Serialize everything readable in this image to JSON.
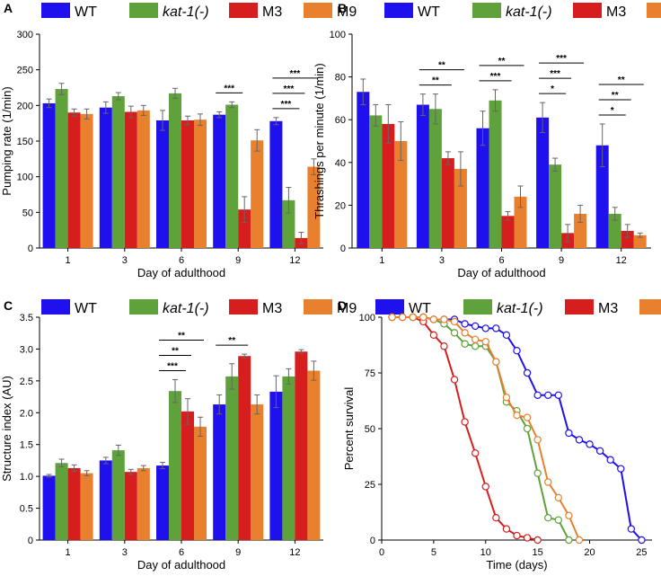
{
  "colors": {
    "WT": "#1f10ee",
    "kat1": "#5fa13a",
    "M3": "#d61e1f",
    "M9": "#e8802e",
    "axis": "#000000",
    "sig": "#333333"
  },
  "legend": [
    {
      "label": "WT",
      "italic": false,
      "colorKey": "WT"
    },
    {
      "label": "kat-1(-)",
      "italic": true,
      "colorKey": "kat1"
    },
    {
      "label": "M3",
      "italic": false,
      "colorKey": "M3"
    },
    {
      "label": "M9",
      "italic": false,
      "colorKey": "M9"
    }
  ],
  "chart_data": [
    {
      "panel": "A",
      "type": "bar",
      "ylabel": "Pumping rate (1/min)",
      "xlabel": "Day of adulthood",
      "categories": [
        "1",
        "3",
        "6",
        "9",
        "12"
      ],
      "ylim": [
        0,
        300
      ],
      "yticks": [
        "0",
        "50",
        "100",
        "150",
        "200",
        "250",
        "300"
      ],
      "series": [
        {
          "name": "WT",
          "values": [
            203,
            197,
            179,
            187,
            178
          ],
          "errors": [
            6,
            8,
            14,
            4,
            5
          ]
        },
        {
          "name": "kat-1(-)",
          "values": [
            223,
            213,
            217,
            201,
            67
          ],
          "errors": [
            8,
            5,
            7,
            4,
            18
          ]
        },
        {
          "name": "M3",
          "values": [
            190,
            191,
            179,
            54,
            14
          ],
          "errors": [
            5,
            8,
            6,
            18,
            8
          ]
        },
        {
          "name": "M9",
          "values": [
            188,
            193,
            180,
            151,
            114
          ],
          "errors": [
            7,
            7,
            8,
            15,
            11
          ]
        }
      ],
      "significance": [
        {
          "cat": 3,
          "from": 0,
          "to": 1,
          "label": "***"
        },
        {
          "cat": 4,
          "from": 0,
          "to": 3,
          "label": "***"
        },
        {
          "cat": 4,
          "from": 0,
          "to": 2,
          "label": "***"
        },
        {
          "cat": 4,
          "from": 0,
          "to": 1,
          "label": "***"
        }
      ]
    },
    {
      "panel": "B",
      "type": "bar",
      "ylabel": "Thrashings per minute (1/min)",
      "xlabel": "Day of adulthood",
      "categories": [
        "1",
        "3",
        "6",
        "9",
        "12"
      ],
      "ylim": [
        0,
        100
      ],
      "yticks": [
        "0",
        "20",
        "40",
        "60",
        "80",
        "100"
      ],
      "series": [
        {
          "name": "WT",
          "values": [
            73,
            67,
            56,
            61,
            48
          ],
          "errors": [
            6,
            5,
            8,
            7,
            10
          ]
        },
        {
          "name": "kat-1(-)",
          "values": [
            62,
            65,
            69,
            39,
            16
          ],
          "errors": [
            5,
            7,
            5,
            3,
            3
          ]
        },
        {
          "name": "M3",
          "values": [
            58,
            42,
            15,
            7,
            8
          ],
          "errors": [
            9,
            3,
            2,
            4,
            3
          ]
        },
        {
          "name": "M9",
          "values": [
            50,
            37,
            24,
            16,
            6
          ],
          "errors": [
            9,
            8,
            5,
            4,
            1
          ]
        }
      ],
      "significance": [
        {
          "cat": 1,
          "from": 0,
          "to": 3,
          "label": "**"
        },
        {
          "cat": 1,
          "from": 0,
          "to": 2,
          "label": "**"
        },
        {
          "cat": 2,
          "from": 0,
          "to": 3,
          "label": "**"
        },
        {
          "cat": 2,
          "from": 0,
          "to": 2,
          "label": "***"
        },
        {
          "cat": 3,
          "from": 0,
          "to": 3,
          "label": "***"
        },
        {
          "cat": 3,
          "from": 0,
          "to": 2,
          "label": "***"
        },
        {
          "cat": 3,
          "from": 0,
          "to": 1,
          "label": "*"
        },
        {
          "cat": 4,
          "from": 0,
          "to": 3,
          "label": "**"
        },
        {
          "cat": 4,
          "from": 0,
          "to": 2,
          "label": "**"
        },
        {
          "cat": 4,
          "from": 0,
          "to": 1,
          "label": "*"
        }
      ]
    },
    {
      "panel": "C",
      "type": "bar",
      "ylabel": "Structure index (AU)",
      "xlabel": "Day of adulthood",
      "categories": [
        "1",
        "3",
        "6",
        "9",
        "12"
      ],
      "ylim": [
        0,
        3.5
      ],
      "yticks": [
        "0",
        "0.5",
        "1.0",
        "1.5",
        "2.0",
        "2.5",
        "3.0",
        "3.5"
      ],
      "series": [
        {
          "name": "WT",
          "values": [
            1.01,
            1.25,
            1.17,
            2.13,
            2.33
          ],
          "errors": [
            0.02,
            0.05,
            0.05,
            0.15,
            0.25
          ]
        },
        {
          "name": "kat-1(-)",
          "values": [
            1.21,
            1.41,
            2.34,
            2.57,
            2.57
          ],
          "errors": [
            0.06,
            0.08,
            0.18,
            0.2,
            0.12
          ]
        },
        {
          "name": "M3",
          "values": [
            1.13,
            1.07,
            2.02,
            2.89,
            2.96
          ],
          "errors": [
            0.05,
            0.04,
            0.2,
            0.03,
            0.03
          ]
        },
        {
          "name": "M9",
          "values": [
            1.05,
            1.13,
            1.78,
            2.13,
            2.66
          ],
          "errors": [
            0.04,
            0.04,
            0.15,
            0.15,
            0.15
          ]
        }
      ],
      "significance": [
        {
          "cat": 2,
          "from": 0,
          "to": 3,
          "label": "**"
        },
        {
          "cat": 2,
          "from": 0,
          "to": 2,
          "label": "**"
        },
        {
          "cat": 2,
          "from": 0,
          "to": 1,
          "label": "***"
        },
        {
          "cat": 3,
          "from": 0,
          "to": 2,
          "label": "**"
        }
      ]
    },
    {
      "panel": "D",
      "type": "line",
      "ylabel": "Percent survival",
      "xlabel": "Time (days)",
      "xlim": [
        0,
        26
      ],
      "ylim": [
        0,
        100
      ],
      "xticks": [
        "0",
        "5",
        "10",
        "15",
        "20",
        "25"
      ],
      "yticks": [
        "0",
        "25",
        "50",
        "75",
        "100"
      ],
      "series": [
        {
          "name": "WT",
          "x": [
            1,
            2,
            3,
            4,
            5,
            6,
            7,
            8,
            9,
            10,
            11,
            12,
            13,
            14,
            15,
            16,
            17,
            18,
            19,
            20,
            21,
            22,
            23,
            24,
            25
          ],
          "y": [
            100,
            100,
            100,
            100,
            99,
            99,
            99,
            97,
            96,
            95,
            95,
            92,
            85,
            75,
            65,
            65,
            65,
            48,
            45,
            43,
            40,
            36,
            32,
            5,
            0
          ]
        },
        {
          "name": "kat-1(-)",
          "x": [
            1,
            2,
            3,
            4,
            5,
            6,
            7,
            8,
            9,
            10,
            11,
            12,
            13,
            14,
            15,
            16,
            17,
            18
          ],
          "y": [
            100,
            100,
            100,
            100,
            99,
            97,
            93,
            88,
            87,
            87,
            80,
            62,
            58,
            50,
            30,
            10,
            9,
            0
          ]
        },
        {
          "name": "M3",
          "x": [
            1,
            2,
            3,
            4,
            5,
            6,
            7,
            8,
            9,
            10,
            11,
            12,
            13,
            14,
            15
          ],
          "y": [
            100,
            100,
            100,
            98,
            92,
            87,
            72,
            53,
            39,
            24,
            10,
            5,
            2,
            1,
            0
          ]
        },
        {
          "name": "M9",
          "x": [
            1,
            2,
            3,
            4,
            5,
            6,
            7,
            8,
            9,
            10,
            11,
            12,
            13,
            14,
            15,
            16,
            17,
            18,
            19
          ],
          "y": [
            100,
            100,
            100,
            100,
            99,
            99,
            98,
            93,
            90,
            89,
            80,
            64,
            56,
            55,
            45,
            26,
            19,
            11,
            0
          ]
        }
      ]
    }
  ]
}
